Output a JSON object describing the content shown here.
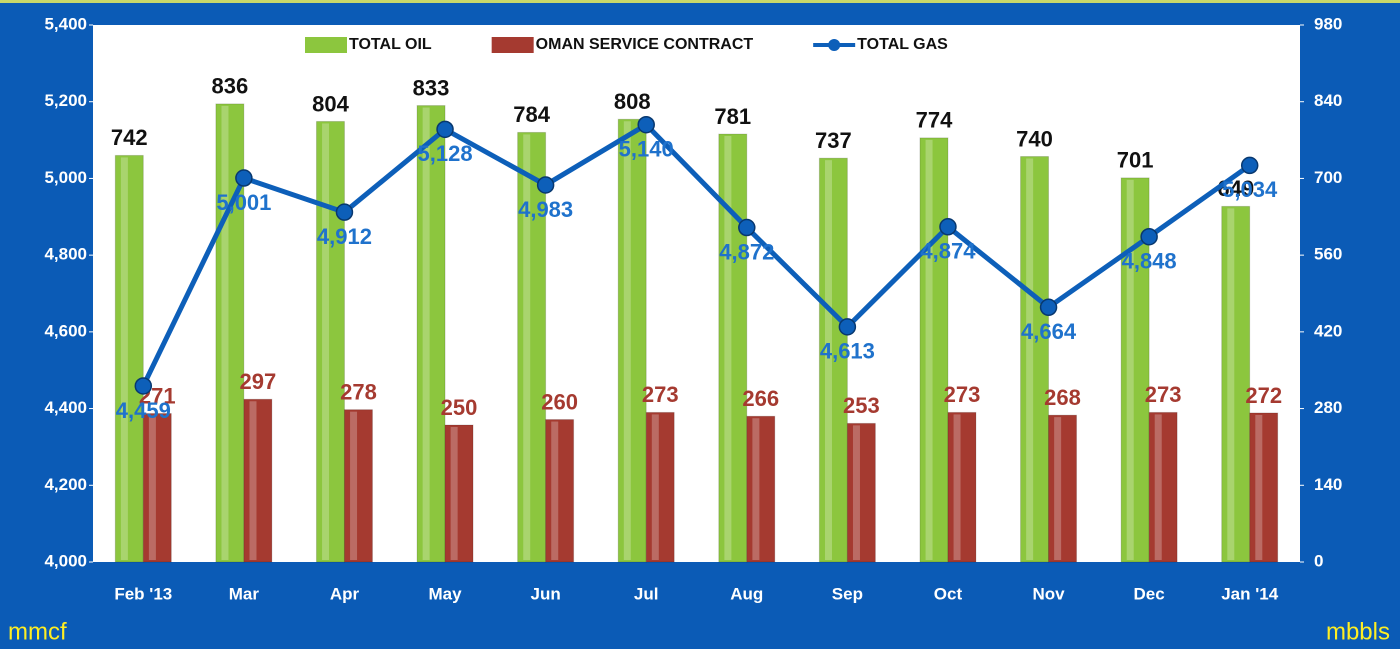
{
  "chart_data": {
    "type": "combo",
    "categories": [
      "Feb '13",
      "Mar",
      "Apr",
      "May",
      "Jun",
      "Jul",
      "Aug",
      "Sep",
      "Oct",
      "Nov",
      "Dec",
      "Jan '14"
    ],
    "y_label": "mmcf",
    "y2_label": "mbbls",
    "ylim": [
      4000,
      5400
    ],
    "yticks": [
      {
        "value": 4000,
        "label": "4,000"
      },
      {
        "value": 4200,
        "label": "4,200"
      },
      {
        "value": 4400,
        "label": "4,400"
      },
      {
        "value": 4600,
        "label": "4,600"
      },
      {
        "value": 4800,
        "label": "4,800"
      },
      {
        "value": 5000,
        "label": "5,000"
      },
      {
        "value": 5200,
        "label": "5,200"
      },
      {
        "value": 5400,
        "label": "5,400"
      }
    ],
    "y2lim": [
      0,
      980
    ],
    "y2ticks": [
      0,
      140,
      280,
      420,
      560,
      700,
      840,
      980
    ],
    "series": [
      {
        "name": "TOTAL OIL",
        "type": "bar",
        "axis": "y2",
        "color": "#8cc63e",
        "label_color": "#111111",
        "values": [
          742,
          836,
          804,
          833,
          784,
          808,
          781,
          737,
          774,
          740,
          701,
          649
        ]
      },
      {
        "name": "OMAN SERVICE CONTRACT",
        "type": "bar",
        "axis": "y2",
        "color": "#a53a30",
        "label_color": "#a53a30",
        "values": [
          271,
          297,
          278,
          250,
          260,
          273,
          266,
          253,
          273,
          268,
          273,
          272
        ]
      },
      {
        "name": "TOTAL GAS",
        "type": "line",
        "color": "#0d5fb9",
        "label_color": "#1f72cc",
        "values": [
          4459,
          5001,
          4912,
          5128,
          4983,
          5140,
          4872,
          4613,
          4874,
          4664,
          4848,
          5034
        ],
        "value_labels": [
          "4,459",
          "5,001",
          "4,912",
          "5,128",
          "4,983",
          "5,140",
          "4,872",
          "4,613",
          "4,874",
          "4,664",
          "4,848",
          "5,034"
        ]
      }
    ]
  }
}
